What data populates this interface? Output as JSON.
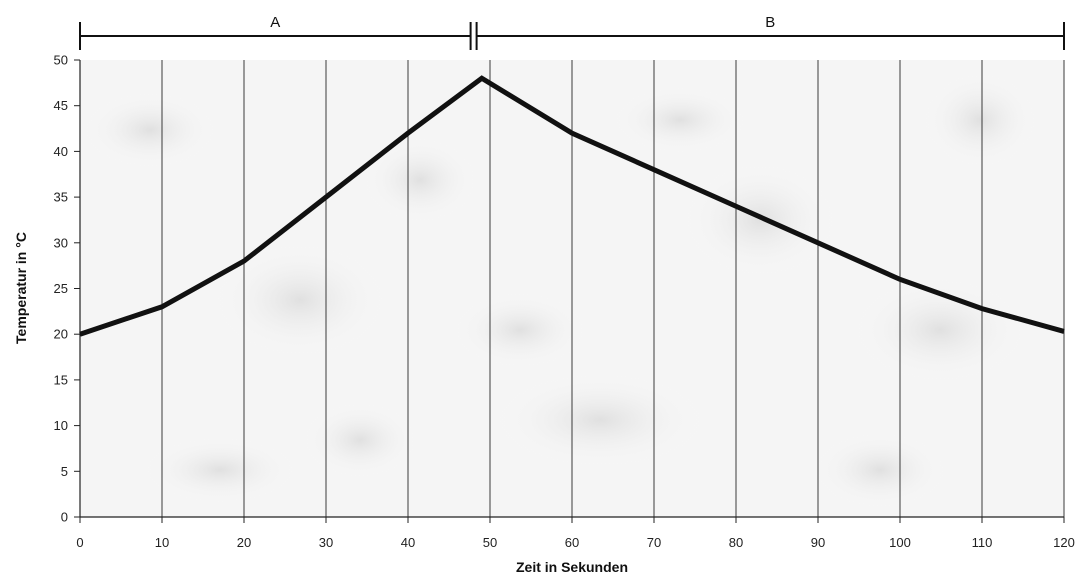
{
  "chart_data": {
    "type": "line",
    "xlabel": "Zeit in Sekunden",
    "ylabel": "Temperatur in °C",
    "xlim": [
      0,
      120
    ],
    "ylim": [
      0,
      50
    ],
    "x_ticks": [
      0,
      10,
      20,
      30,
      40,
      50,
      60,
      70,
      80,
      90,
      100,
      110,
      120
    ],
    "y_ticks": [
      0,
      5,
      10,
      15,
      20,
      25,
      30,
      35,
      40,
      45,
      50
    ],
    "grid": "vertical",
    "series": [
      {
        "x": [
          0,
          10,
          20,
          30,
          40,
          49,
          60,
          70,
          80,
          90,
          100,
          110,
          120
        ],
        "y": [
          20,
          23,
          28,
          35,
          42,
          48,
          42,
          38,
          34,
          30,
          26,
          22.8,
          20.3
        ],
        "color": "#111111"
      }
    ],
    "phases": [
      {
        "label": "A",
        "start": 0,
        "end": 48
      },
      {
        "label": "B",
        "start": 48,
        "end": 120
      }
    ]
  }
}
